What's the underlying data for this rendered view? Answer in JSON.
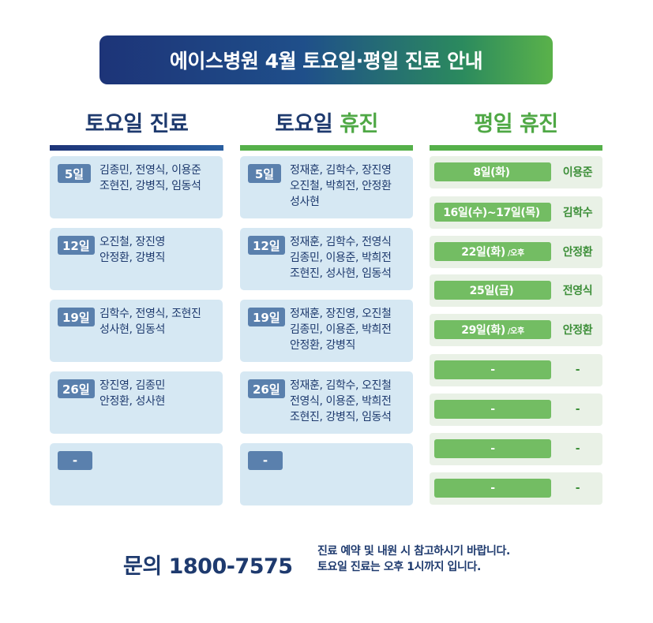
{
  "title": "에이스병원 4월 토요일·평일 진료 안내",
  "columns": {
    "sat_clinic": "토요일 진료",
    "sat_closed_a": "토요일",
    "sat_closed_b": "휴진",
    "weekday_closed": "평일 휴진"
  },
  "sat_clinic": [
    {
      "day": "5일",
      "line1": "김종민, 전영식, 이용준",
      "line2": "조현진, 강병직, 임동석"
    },
    {
      "day": "12일",
      "line1": "오진철, 장진영",
      "line2": "안정환, 강병직"
    },
    {
      "day": "19일",
      "line1": "김학수, 전영식, 조현진",
      "line2": "성사현, 임동석"
    },
    {
      "day": "26일",
      "line1": "장진영, 김종민",
      "line2": "안정환, 성사현"
    },
    {
      "day": "-",
      "line1": "",
      "line2": ""
    }
  ],
  "sat_closed": [
    {
      "day": "5일",
      "line1": "정재훈, 김학수, 장진영",
      "line2": "오진철, 박희전, 안정환",
      "line3": "성사현"
    },
    {
      "day": "12일",
      "line1": "정재훈, 김학수, 전영식",
      "line2": "김종민, 이용준, 박희전",
      "line3": "조현진, 성사현, 임동석"
    },
    {
      "day": "19일",
      "line1": "정재훈, 장진영, 오진철",
      "line2": "김종민, 이용준, 박희전",
      "line3": "안정환, 강병직"
    },
    {
      "day": "26일",
      "line1": "정재훈, 김학수, 오진철",
      "line2": "전영식, 이용준, 박희전",
      "line3": "조현진, 강병직, 임동석"
    },
    {
      "day": "-",
      "line1": "",
      "line2": "",
      "line3": ""
    }
  ],
  "weekday_closed": [
    {
      "date": "8일(화)",
      "suffix": "",
      "doctor": "이용준"
    },
    {
      "date": "16일(수)~17일(목)",
      "suffix": "",
      "doctor": "김학수"
    },
    {
      "date": "22일(화)",
      "suffix": "/오후",
      "doctor": "안정환"
    },
    {
      "date": "25일(금)",
      "suffix": "",
      "doctor": "전영식"
    },
    {
      "date": "29일(화)",
      "suffix": "/오후",
      "doctor": "안정환"
    },
    {
      "date": "-",
      "suffix": "",
      "doctor": "-"
    },
    {
      "date": "-",
      "suffix": "",
      "doctor": "-"
    },
    {
      "date": "-",
      "suffix": "",
      "doctor": "-"
    },
    {
      "date": "-",
      "suffix": "",
      "doctor": "-"
    }
  ],
  "footer": {
    "phone": "문의 1800-7575",
    "note_line1": "진료 예약 및 내원 시 참고하시기 바랍니다.",
    "note_line2": "토요일 진료는 오후 1시까지 입니다."
  },
  "colors": {
    "navy": "#1e3a6e",
    "green": "#55b04a",
    "card_bg": "#d6e8f3",
    "badge": "#5a80ad"
  }
}
